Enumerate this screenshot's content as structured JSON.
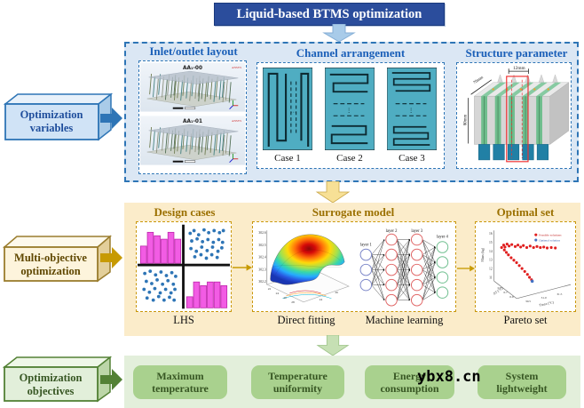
{
  "header": {
    "title": "Liquid-based BTMS optimization"
  },
  "watermark": {
    "text": "ybx8.cn"
  },
  "colors": {
    "header_bg": "#2b4d9c",
    "blue_accent": "#2e75b6",
    "panel1_bg": "#dbe7f4",
    "gold_accent": "#c79a02",
    "panel2_bg": "#fbecca",
    "green_accent": "#538135",
    "panel3_bg": "#e3efdb",
    "objective_box": "#a9d18e",
    "channel_teal": "#4fadc2",
    "histogram_magenta": "#f25ce4",
    "scatter_blue": "#2e75b6",
    "pareto_red": "#e02020",
    "pareto_blue": "#4472c4",
    "nn_layer1": "#7b86c8",
    "nn_layer23": "#e06666",
    "nn_layer4": "#6fbf8f"
  },
  "row1": {
    "side": {
      "line1": "Optimization",
      "line2": "variables"
    },
    "inlet": {
      "title": "Inlet/outlet layout",
      "img1": "AA₁-00",
      "img2": "AA₁-01",
      "logo": "ANSYS"
    },
    "channel": {
      "title": "Channel arrangement",
      "cases": [
        "Case 1",
        "Case 2",
        "Case 3"
      ]
    },
    "structure": {
      "title": "Structure parameter",
      "dim_top": "12mm",
      "dim_upper": "70mm",
      "dim_lower": "80mm"
    }
  },
  "row2": {
    "side": {
      "line1": "Multi-objective",
      "line2": "optimization"
    },
    "design": {
      "title": "Design cases",
      "caption": "LHS"
    },
    "surrogate": {
      "title": "Surrogate model",
      "caption_direct": "Direct fitting",
      "caption_ml": "Machine learning",
      "surface": {
        "zticks": [
          "302.6",
          "302.5",
          "302.4",
          "302.3",
          "302.2"
        ],
        "xticks": [
          "22",
          "24",
          "26",
          "28"
        ],
        "yticks": [
          "24",
          "26"
        ]
      },
      "nn": {
        "layers": [
          {
            "label": "layer 1",
            "nodes": 3
          },
          {
            "label": "layer 2",
            "nodes": 5
          },
          {
            "label": "layer 3",
            "nodes": 5
          },
          {
            "label": "layer 4",
            "nodes": 4
          }
        ]
      }
    },
    "optimal": {
      "title": "Optimal set",
      "caption": "Pareto set",
      "legend": [
        {
          "label": "Feasible solutions",
          "color": "#e02020"
        },
        {
          "label": "Optimal solution",
          "color": "#4472c4"
        }
      ],
      "axis_left": "Mass (kg)",
      "axis_dt": "ΔT (°C)",
      "axis_tmax": "Tmax (°C)",
      "zticks": [
        "16",
        "15",
        "14",
        "13",
        "12",
        "11"
      ],
      "dt_ticks": [
        "0.5",
        "0.7",
        "0.9"
      ],
      "tmax_ticks": [
        "30.5",
        "31.0",
        "31.5"
      ]
    }
  },
  "row3": {
    "side": {
      "line1": "Optimization",
      "line2": "objectives"
    },
    "objectives": [
      {
        "line1": "Maximum",
        "line2": "temperature"
      },
      {
        "line1": "Temperature",
        "line2": "uniformity"
      },
      {
        "line1": "Energy",
        "line2": "consumption"
      },
      {
        "line1": "System",
        "line2": "lightweight"
      }
    ]
  },
  "charts": {
    "hist_tl": [
      5,
      9,
      8,
      7,
      9,
      7
    ],
    "hist_br": [
      3,
      7,
      6,
      7,
      7,
      6
    ],
    "scatter_tr": [
      [
        8,
        18
      ],
      [
        18,
        10
      ],
      [
        30,
        22
      ],
      [
        44,
        8
      ],
      [
        56,
        16
      ],
      [
        70,
        10
      ],
      [
        84,
        16
      ],
      [
        94,
        10
      ],
      [
        12,
        40
      ],
      [
        26,
        34
      ],
      [
        40,
        42
      ],
      [
        54,
        36
      ],
      [
        68,
        44
      ],
      [
        82,
        36
      ],
      [
        92,
        44
      ],
      [
        10,
        62
      ],
      [
        24,
        70
      ],
      [
        38,
        58
      ],
      [
        52,
        68
      ],
      [
        66,
        58
      ],
      [
        80,
        70
      ],
      [
        90,
        60
      ],
      [
        20,
        86
      ],
      [
        36,
        80
      ],
      [
        50,
        90
      ],
      [
        64,
        80
      ],
      [
        78,
        88
      ]
    ],
    "scatter_bl": [
      [
        10,
        14
      ],
      [
        24,
        8
      ],
      [
        38,
        18
      ],
      [
        52,
        10
      ],
      [
        66,
        20
      ],
      [
        80,
        12
      ],
      [
        90,
        22
      ],
      [
        14,
        36
      ],
      [
        28,
        42
      ],
      [
        42,
        32
      ],
      [
        56,
        44
      ],
      [
        70,
        34
      ],
      [
        84,
        44
      ],
      [
        8,
        58
      ],
      [
        22,
        66
      ],
      [
        36,
        56
      ],
      [
        50,
        68
      ],
      [
        64,
        58
      ],
      [
        78,
        68
      ],
      [
        88,
        58
      ],
      [
        16,
        82
      ],
      [
        32,
        88
      ],
      [
        46,
        78
      ],
      [
        60,
        88
      ],
      [
        74,
        80
      ],
      [
        86,
        88
      ]
    ],
    "pareto_feasible": [
      [
        6,
        26
      ],
      [
        9,
        21
      ],
      [
        11,
        25
      ],
      [
        14,
        19
      ],
      [
        17,
        23
      ],
      [
        21,
        20
      ],
      [
        26,
        24
      ],
      [
        30,
        21
      ],
      [
        34,
        25
      ],
      [
        38,
        22
      ],
      [
        43,
        26
      ],
      [
        48,
        23
      ],
      [
        53,
        26
      ],
      [
        58,
        24
      ],
      [
        63,
        26
      ],
      [
        68,
        25
      ],
      [
        73,
        27
      ],
      [
        79,
        26
      ],
      [
        85,
        27
      ],
      [
        10,
        31
      ],
      [
        13,
        36
      ],
      [
        16,
        41
      ],
      [
        20,
        47
      ],
      [
        24,
        52
      ],
      [
        28,
        57
      ],
      [
        32,
        63
      ],
      [
        36,
        69
      ],
      [
        40,
        75
      ],
      [
        44,
        81
      ],
      [
        47,
        87
      ],
      [
        50,
        92
      ]
    ],
    "pareto_optimal": [
      [
        51,
        95
      ]
    ]
  }
}
